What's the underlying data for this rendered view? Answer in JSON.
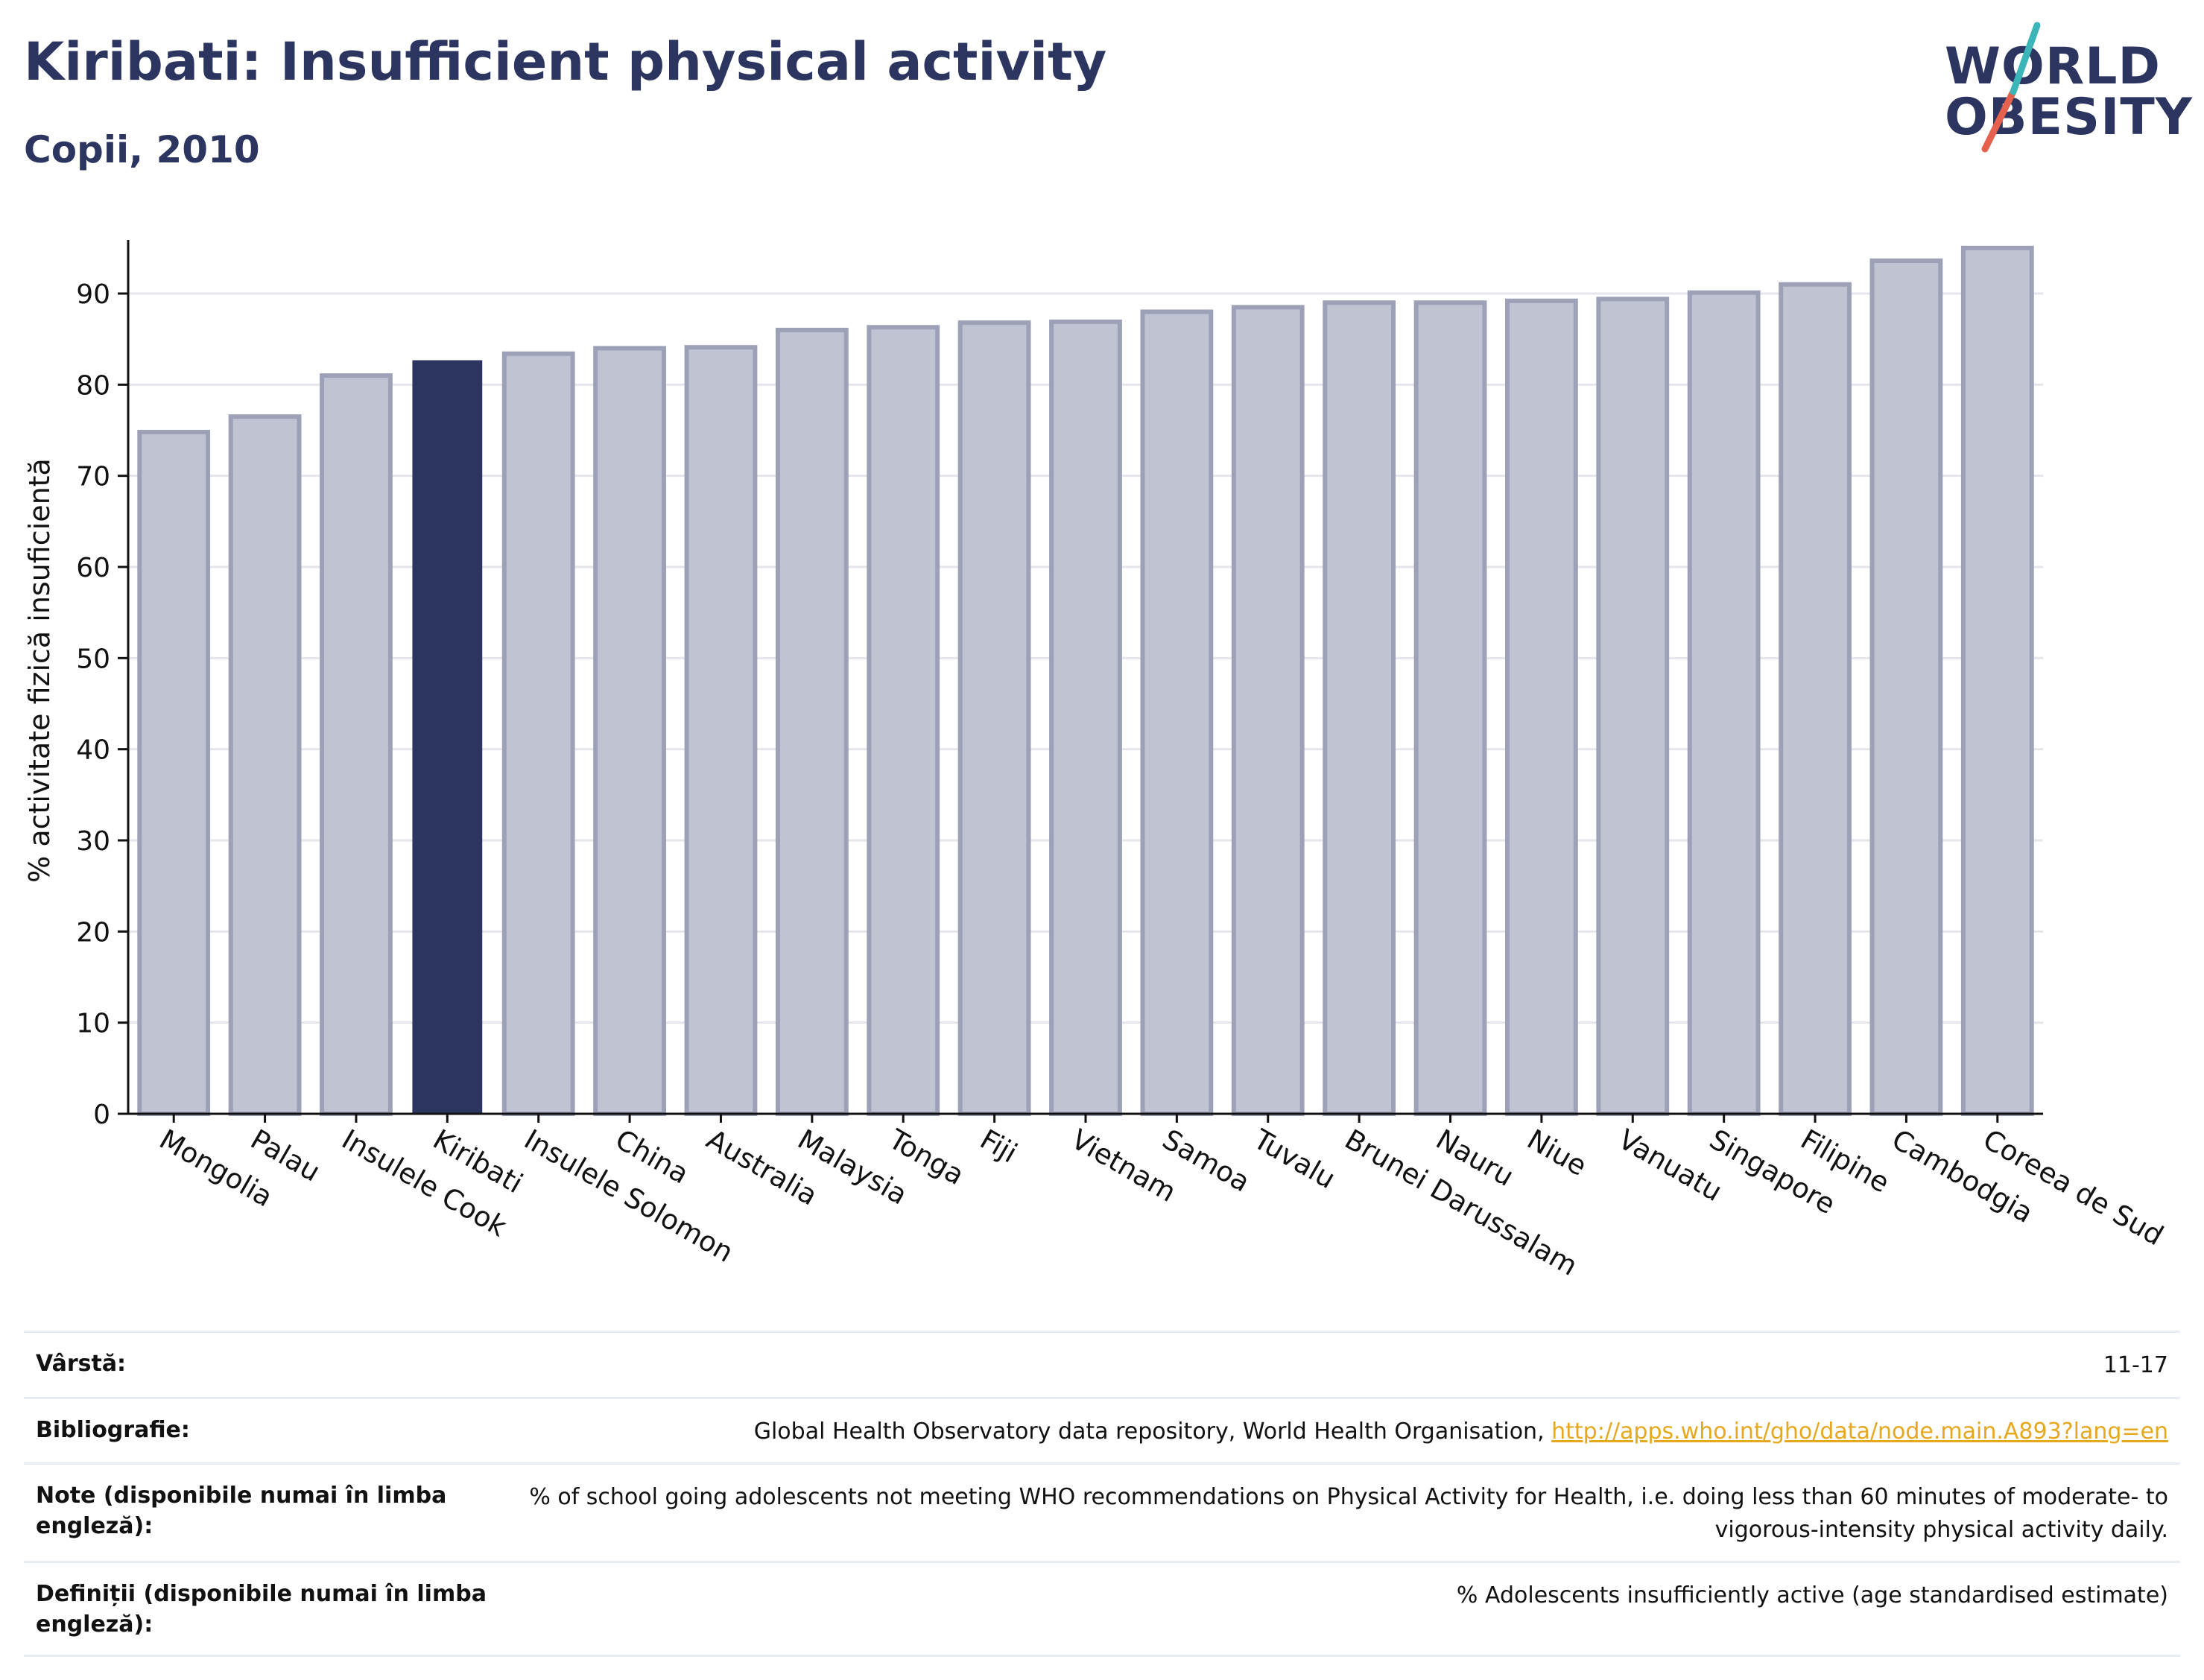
{
  "header": {
    "title": "Kiribati: Insufficient physical activity",
    "subtitle": "Copii, 2010"
  },
  "logo": {
    "line1": "WORLD",
    "line2": "OBESITY",
    "accent_colors": [
      "#3bb5b8",
      "#e5604d"
    ]
  },
  "colors": {
    "highlight": "#2b3560",
    "bar": "#c0c3d1",
    "bar_edge": "#9da1b8",
    "grid": "#e4e6ec",
    "link": "#e5a81e"
  },
  "chart_data": {
    "type": "bar",
    "title": "Kiribati: Insufficient physical activity",
    "subtitle": "Copii, 2010",
    "ylabel": "% activitate fizică insuficientă",
    "xlabel": "",
    "ylim": [
      0,
      95
    ],
    "yticks": [
      0,
      10,
      20,
      30,
      40,
      50,
      60,
      70,
      80,
      90
    ],
    "grid": true,
    "highlight": "Kiribati",
    "categories": [
      "Mongolia",
      "Palau",
      "Insulele Cook",
      "Kiribati",
      "Insulele Solomon",
      "China",
      "Australia",
      "Malaysia",
      "Tonga",
      "Fiji",
      "Vietnam",
      "Samoa",
      "Tuvalu",
      "Brunei Darussalam",
      "Nauru",
      "Niue",
      "Vanuatu",
      "Singapore",
      "Filipine",
      "Cambodgia",
      "Coreea de Sud"
    ],
    "values": [
      74.8,
      76.5,
      81.0,
      82.6,
      83.4,
      84.0,
      84.1,
      86.0,
      86.3,
      86.8,
      86.9,
      88.0,
      88.5,
      89.0,
      89.0,
      89.2,
      89.4,
      90.1,
      91.0,
      93.6,
      95.0
    ]
  },
  "info": {
    "rows": [
      {
        "label": "Vârstă:",
        "value": "11-17"
      },
      {
        "label": "Bibliografie:",
        "value": "Global Health Observatory data repository, World Health Organisation, ",
        "link": "http://apps.who.int/gho/data/node.main.A893?lang=en"
      },
      {
        "label": "Note (disponibile numai în limba engleză):",
        "value": "% of school going adolescents not meeting WHO recommendations on Physical Activity for Health, i.e. doing less than 60 minutes of moderate- to vigorous-intensity physical activity daily."
      },
      {
        "label": "Definiții (disponibile numai în limba engleză):",
        "value": "% Adolescents insufficiently active (age standardised estimate)"
      }
    ]
  }
}
